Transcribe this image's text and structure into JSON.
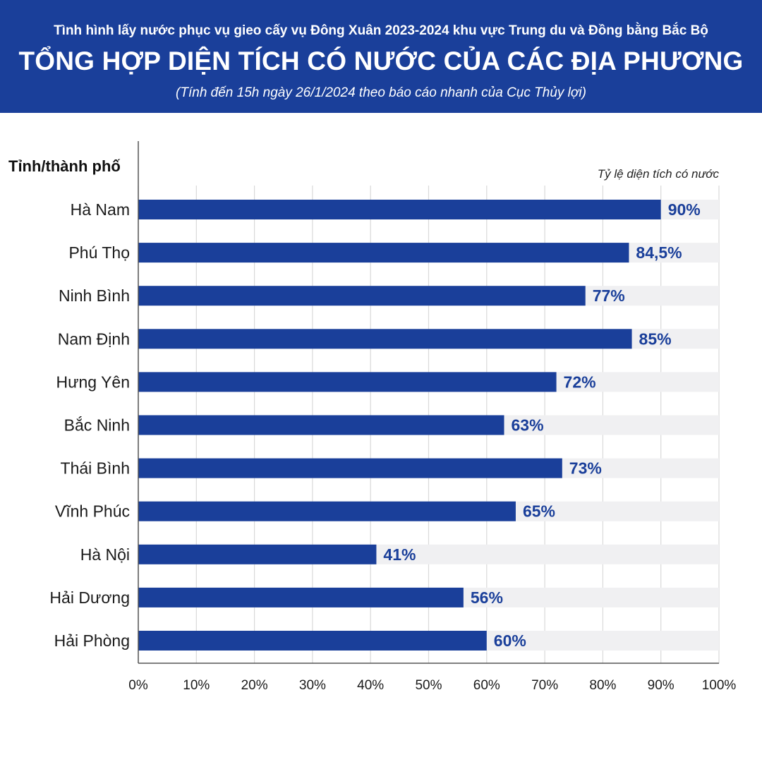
{
  "header": {
    "subtitle": "Tình hình lấy nước phục vụ gieo cấy vụ Đông Xuân 2023-2024 khu vực Trung du và Đồng bằng Bắc Bộ",
    "title": "TỔNG HỢP DIỆN TÍCH CÓ NƯỚC CỦA CÁC ĐỊA PHƯƠNG",
    "note": "(Tính đến 15h ngày 26/1/2024 theo báo cáo nhanh của Cục Thủy lợi)"
  },
  "colors": {
    "header_bg": "#1a3f9a",
    "bar": "#1a3f9a",
    "track": "#f0f0f2",
    "grid": "#d9d9d9",
    "value_text": "#1a3f9a"
  },
  "chart_data": {
    "type": "bar",
    "orientation": "horizontal",
    "ylabel": "Tỉnh/thành phố",
    "xlabel": "Tỷ lệ diện tích có nước",
    "categories": [
      "Hà Nam",
      "Phú Thọ",
      "Ninh Bình",
      "Nam Định",
      "Hưng Yên",
      "Bắc Ninh",
      "Thái Bình",
      "Vĩnh Phúc",
      "Hà Nội",
      "Hải Dương",
      "Hải Phòng"
    ],
    "values": [
      90,
      84.5,
      77,
      85,
      72,
      63,
      73,
      65,
      41,
      56,
      60
    ],
    "value_labels": [
      "90%",
      "84,5%",
      "77%",
      "85%",
      "72%",
      "63%",
      "73%",
      "65%",
      "41%",
      "56%",
      "60%"
    ],
    "xlim": [
      0,
      100
    ],
    "xticks": [
      0,
      10,
      20,
      30,
      40,
      50,
      60,
      70,
      80,
      90,
      100
    ],
    "xtick_labels": [
      "0%",
      "10%",
      "20%",
      "30%",
      "40%",
      "50%",
      "60%",
      "70%",
      "80%",
      "90%",
      "100%"
    ],
    "grid": true,
    "background_track": true
  }
}
